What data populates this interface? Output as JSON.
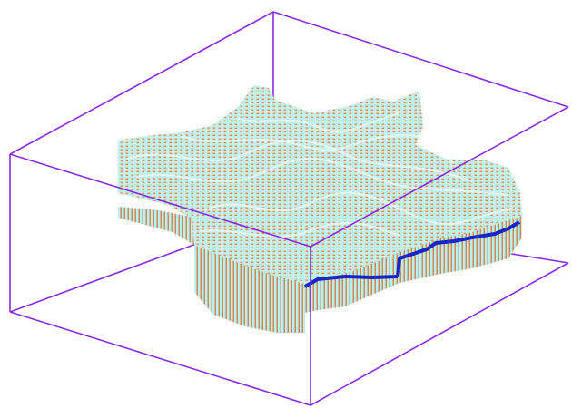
{
  "scene": {
    "background_color": "#ffffff",
    "bounding_box_color": "#8a2be2",
    "mesh_line_color": "#d9773f",
    "mesh_fill_color": "#b8f0ee",
    "horizon_color": "#1326c8"
  }
}
